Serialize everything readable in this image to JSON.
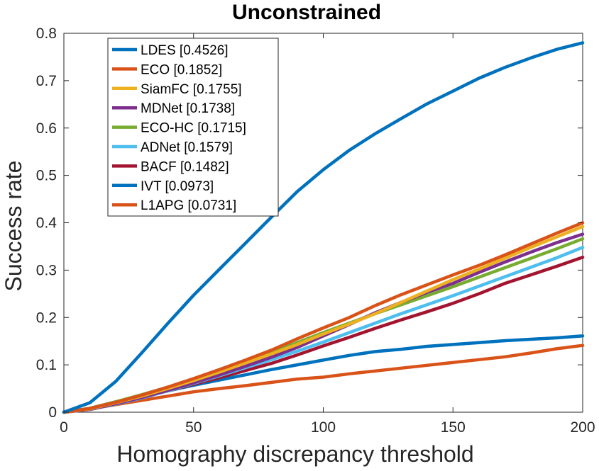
{
  "chart_data": {
    "type": "line",
    "title": "Unconstrained",
    "xlabel": "Homography discrepancy threshold",
    "ylabel": "Success rate",
    "xlim": [
      0,
      200
    ],
    "ylim": [
      0,
      0.8
    ],
    "xticks": [
      0,
      50,
      100,
      150,
      200
    ],
    "yticks": [
      0,
      0.1,
      0.2,
      0.3,
      0.4,
      0.5,
      0.6,
      0.7,
      0.8
    ],
    "xtick_labels": [
      "0",
      "50",
      "100",
      "150",
      "200"
    ],
    "ytick_labels": [
      "0",
      "0.1",
      "0.2",
      "0.3",
      "0.4",
      "0.5",
      "0.6",
      "0.7",
      "0.8"
    ],
    "grid": false,
    "legend_position": "top-left",
    "series": [
      {
        "name": "LDES [0.4526]",
        "color": "#0072BD",
        "x": [
          0,
          10,
          20,
          30,
          40,
          50,
          60,
          70,
          80,
          90,
          100,
          110,
          120,
          130,
          140,
          150,
          160,
          170,
          180,
          190,
          200
        ],
        "y": [
          0,
          0.02,
          0.065,
          0.125,
          0.187,
          0.247,
          0.302,
          0.357,
          0.412,
          0.466,
          0.512,
          0.553,
          0.588,
          0.62,
          0.651,
          0.678,
          0.705,
          0.728,
          0.748,
          0.766,
          0.78
        ]
      },
      {
        "name": "ECO [0.1852]",
        "color": "#D95319",
        "x": [
          0,
          10,
          20,
          30,
          40,
          50,
          60,
          70,
          80,
          90,
          100,
          110,
          120,
          130,
          140,
          150,
          160,
          170,
          180,
          190,
          200
        ],
        "y": [
          0,
          0.008,
          0.021,
          0.036,
          0.053,
          0.071,
          0.09,
          0.11,
          0.131,
          0.155,
          0.178,
          0.2,
          0.225,
          0.248,
          0.269,
          0.29,
          0.31,
          0.332,
          0.355,
          0.378,
          0.4
        ]
      },
      {
        "name": "SiamFC [0.1755]",
        "color": "#EDB120",
        "x": [
          0,
          10,
          20,
          30,
          40,
          50,
          60,
          70,
          80,
          90,
          100,
          110,
          120,
          130,
          140,
          150,
          160,
          170,
          180,
          190,
          200
        ],
        "y": [
          0,
          0.007,
          0.02,
          0.034,
          0.05,
          0.067,
          0.085,
          0.104,
          0.123,
          0.143,
          0.165,
          0.186,
          0.208,
          0.232,
          0.256,
          0.28,
          0.302,
          0.325,
          0.348,
          0.37,
          0.392
        ]
      },
      {
        "name": "MDNet [0.1738]",
        "color": "#7E2F8E",
        "x": [
          0,
          10,
          20,
          30,
          40,
          50,
          60,
          70,
          80,
          90,
          100,
          110,
          120,
          130,
          140,
          150,
          160,
          170,
          180,
          190,
          200
        ],
        "y": [
          0,
          0.006,
          0.018,
          0.031,
          0.046,
          0.062,
          0.079,
          0.097,
          0.116,
          0.137,
          0.161,
          0.185,
          0.21,
          0.232,
          0.253,
          0.272,
          0.295,
          0.317,
          0.338,
          0.358,
          0.376
        ]
      },
      {
        "name": "ECO-HC [0.1715]",
        "color": "#77AC30",
        "x": [
          0,
          10,
          20,
          30,
          40,
          50,
          60,
          70,
          80,
          90,
          100,
          110,
          120,
          130,
          140,
          150,
          160,
          170,
          180,
          190,
          200
        ],
        "y": [
          0,
          0.008,
          0.022,
          0.037,
          0.053,
          0.07,
          0.088,
          0.106,
          0.126,
          0.147,
          0.168,
          0.188,
          0.208,
          0.227,
          0.246,
          0.265,
          0.285,
          0.305,
          0.325,
          0.345,
          0.366
        ]
      },
      {
        "name": "ADNet [0.1579]",
        "color": "#4DBEEE",
        "x": [
          0,
          10,
          20,
          30,
          40,
          50,
          60,
          70,
          80,
          90,
          100,
          110,
          120,
          130,
          140,
          150,
          160,
          170,
          180,
          190,
          200
        ],
        "y": [
          0,
          0.006,
          0.017,
          0.03,
          0.045,
          0.061,
          0.077,
          0.094,
          0.111,
          0.129,
          0.148,
          0.168,
          0.188,
          0.208,
          0.227,
          0.246,
          0.266,
          0.286,
          0.306,
          0.326,
          0.348
        ]
      },
      {
        "name": "BACF [0.1482]",
        "color": "#A2142F",
        "x": [
          0,
          10,
          20,
          30,
          40,
          50,
          60,
          70,
          80,
          90,
          100,
          110,
          120,
          130,
          140,
          150,
          160,
          170,
          180,
          190,
          200
        ],
        "y": [
          0,
          0.006,
          0.018,
          0.031,
          0.045,
          0.059,
          0.073,
          0.088,
          0.103,
          0.121,
          0.14,
          0.158,
          0.177,
          0.195,
          0.212,
          0.23,
          0.25,
          0.272,
          0.29,
          0.308,
          0.327
        ]
      },
      {
        "name": "IVT [0.0973]",
        "color": "#0072BD",
        "x": [
          0,
          10,
          20,
          30,
          40,
          50,
          60,
          70,
          80,
          90,
          100,
          110,
          120,
          130,
          140,
          150,
          160,
          170,
          180,
          190,
          200
        ],
        "y": [
          0,
          0.008,
          0.022,
          0.034,
          0.045,
          0.057,
          0.068,
          0.079,
          0.09,
          0.1,
          0.11,
          0.12,
          0.128,
          0.133,
          0.139,
          0.143,
          0.147,
          0.151,
          0.154,
          0.157,
          0.161
        ]
      },
      {
        "name": "L1APG [0.0731]",
        "color": "#D95319",
        "x": [
          0,
          10,
          20,
          30,
          40,
          50,
          60,
          70,
          80,
          90,
          100,
          110,
          120,
          130,
          140,
          150,
          160,
          170,
          180,
          190,
          200
        ],
        "y": [
          0,
          0.007,
          0.016,
          0.025,
          0.034,
          0.043,
          0.05,
          0.056,
          0.063,
          0.07,
          0.074,
          0.081,
          0.087,
          0.093,
          0.099,
          0.105,
          0.111,
          0.117,
          0.125,
          0.134,
          0.141
        ]
      }
    ]
  }
}
